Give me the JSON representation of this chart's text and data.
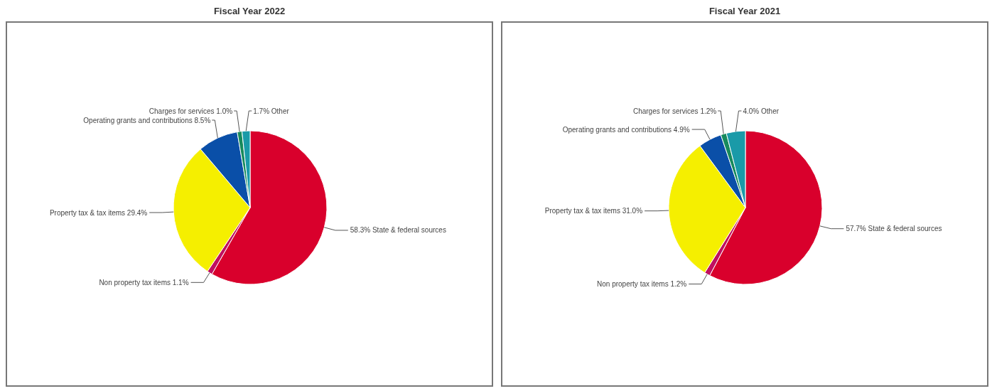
{
  "chart_data": [
    {
      "type": "pie",
      "title": "Fiscal Year 2022",
      "categories": [
        "State & federal sources",
        "Non property tax items",
        "Property tax & tax items",
        "Operating grants and contributions",
        "Charges for services",
        "Other"
      ],
      "values": [
        58.3,
        1.1,
        29.4,
        8.5,
        1.0,
        1.7
      ],
      "colors": [
        "#d9002c",
        "#c01060",
        "#f5ef00",
        "#0a4fa8",
        "#178a5c",
        "#1a9aa8"
      ],
      "value_labels": [
        "58.3%",
        "1.1%",
        "29.4%",
        "8.5%",
        "1.0%",
        "1.7%"
      ]
    },
    {
      "type": "pie",
      "title": "Fiscal Year 2021",
      "categories": [
        "State & federal sources",
        "Non property tax items",
        "Property tax & tax items",
        "Operating grants and contributions",
        "Charges for services",
        "Other"
      ],
      "values": [
        57.7,
        1.2,
        31.0,
        4.9,
        1.2,
        4.0
      ],
      "colors": [
        "#d9002c",
        "#c01060",
        "#f5ef00",
        "#0a4fa8",
        "#178a5c",
        "#1a9aa8"
      ],
      "value_labels": [
        "57.7%",
        "1.2%",
        "31.0%",
        "4.9%",
        "1.2%",
        "4.0%"
      ]
    }
  ]
}
